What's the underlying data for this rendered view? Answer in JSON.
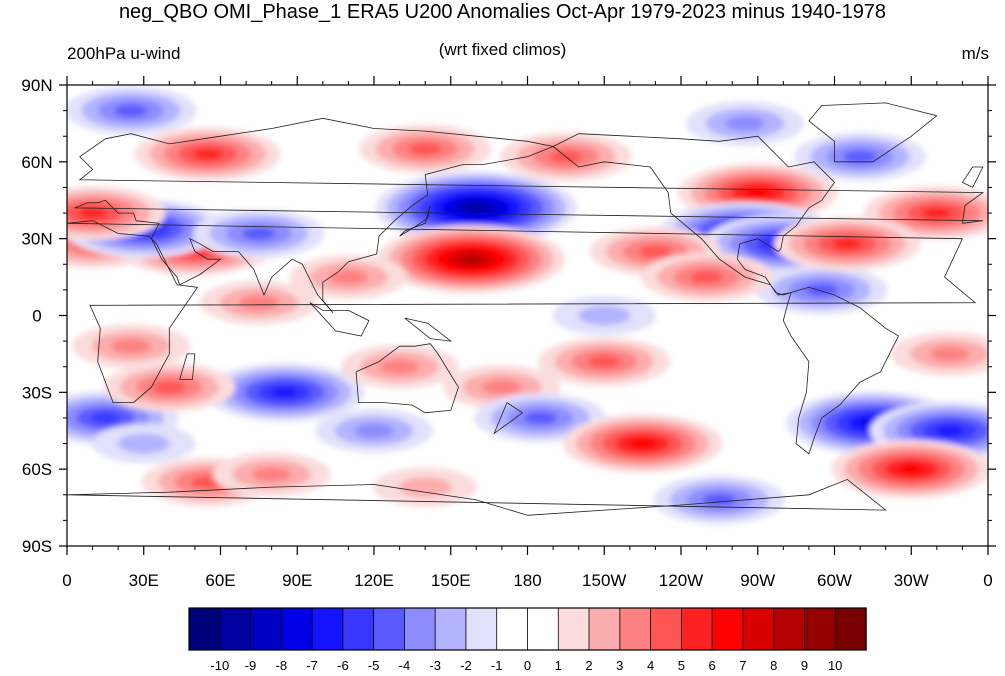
{
  "title": "neg_QBO OMI_Phase_1 ERA5 U200 Anomalies Oct-Apr 1979-2023 minus 1940-1978",
  "subtitle_left": "200hPa u-wind",
  "subtitle_center": "(wrt fixed climos)",
  "subtitle_right": "m/s",
  "lat_labels": [
    "90N",
    "60N",
    "30N",
    "0",
    "30S",
    "60S",
    "90S"
  ],
  "lon_labels": [
    "0",
    "30E",
    "60E",
    "90E",
    "120E",
    "150E",
    "180",
    "150W",
    "120W",
    "90W",
    "60W",
    "30W",
    "0"
  ],
  "colorbar": {
    "labels": [
      "-10",
      "-9",
      "-8",
      "-7",
      "-6",
      "-5",
      "-4",
      "-3",
      "-2",
      "-1",
      "0",
      "1",
      "2",
      "3",
      "4",
      "5",
      "6",
      "7",
      "8",
      "9",
      "10"
    ],
    "colors": [
      "#00007a",
      "#00009e",
      "#0000c4",
      "#0000e6",
      "#1414ff",
      "#3737ff",
      "#5a5aff",
      "#8c8cff",
      "#b3b3ff",
      "#e1e1fb",
      "#ffffff",
      "#ffffff",
      "#fbdcdc",
      "#fcadad",
      "#fc8282",
      "#ff5555",
      "#ff2222",
      "#ff0000",
      "#d80000",
      "#b40000",
      "#950000",
      "#790000"
    ]
  },
  "map_data": {
    "domain": {
      "lon_range": [
        0,
        360
      ],
      "lat_range": [
        -90,
        90
      ]
    },
    "field_description_units": "m/s",
    "anomalies": [
      {
        "lon": 50,
        "lat": 27,
        "value": 6
      },
      {
        "lon": 10,
        "lat": 28,
        "value": 4
      },
      {
        "lon": 30,
        "lat": 34,
        "value": -6
      },
      {
        "lon": 75,
        "lat": 32,
        "value": -4
      },
      {
        "lon": 10,
        "lat": 40,
        "value": 5
      },
      {
        "lon": 55,
        "lat": 63,
        "value": 5
      },
      {
        "lon": 25,
        "lat": 80,
        "value": -4
      },
      {
        "lon": 75,
        "lat": 5,
        "value": 3
      },
      {
        "lon": 25,
        "lat": -12,
        "value": 3
      },
      {
        "lon": 15,
        "lat": -40,
        "value": -5
      },
      {
        "lon": 85,
        "lat": -30,
        "value": -6
      },
      {
        "lon": 40,
        "lat": -28,
        "value": 4
      },
      {
        "lon": 55,
        "lat": -65,
        "value": 4
      },
      {
        "lon": 30,
        "lat": -50,
        "value": -2
      },
      {
        "lon": 80,
        "lat": -62,
        "value": 3
      },
      {
        "lon": 160,
        "lat": 42,
        "value": -9
      },
      {
        "lon": 158,
        "lat": 22,
        "value": 8
      },
      {
        "lon": 110,
        "lat": 15,
        "value": 3
      },
      {
        "lon": 140,
        "lat": 65,
        "value": 4
      },
      {
        "lon": 195,
        "lat": 62,
        "value": 4
      },
      {
        "lon": 130,
        "lat": -20,
        "value": 3
      },
      {
        "lon": 120,
        "lat": -45,
        "value": -3
      },
      {
        "lon": 170,
        "lat": -28,
        "value": 3
      },
      {
        "lon": 185,
        "lat": -40,
        "value": -4
      },
      {
        "lon": 140,
        "lat": -67,
        "value": 2
      },
      {
        "lon": 225,
        "lat": -50,
        "value": 6
      },
      {
        "lon": 255,
        "lat": -72,
        "value": -4
      },
      {
        "lon": 270,
        "lat": 48,
        "value": 6
      },
      {
        "lon": 265,
        "lat": 32,
        "value": -7
      },
      {
        "lon": 280,
        "lat": 28,
        "value": -6
      },
      {
        "lon": 230,
        "lat": 25,
        "value": 4
      },
      {
        "lon": 295,
        "lat": 10,
        "value": -4
      },
      {
        "lon": 315,
        "lat": -42,
        "value": -7
      },
      {
        "lon": 345,
        "lat": -45,
        "value": -6
      },
      {
        "lon": 330,
        "lat": -60,
        "value": 6
      },
      {
        "lon": 340,
        "lat": 40,
        "value": 5
      },
      {
        "lon": 305,
        "lat": 28,
        "value": 5
      },
      {
        "lon": 310,
        "lat": 62,
        "value": -4
      },
      {
        "lon": 265,
        "lat": 75,
        "value": -3
      },
      {
        "lon": 345,
        "lat": -15,
        "value": 3
      },
      {
        "lon": 210,
        "lat": 0,
        "value": -2
      },
      {
        "lon": 250,
        "lat": 15,
        "value": 4
      },
      {
        "lon": 210,
        "lat": -18,
        "value": 4
      }
    ]
  }
}
